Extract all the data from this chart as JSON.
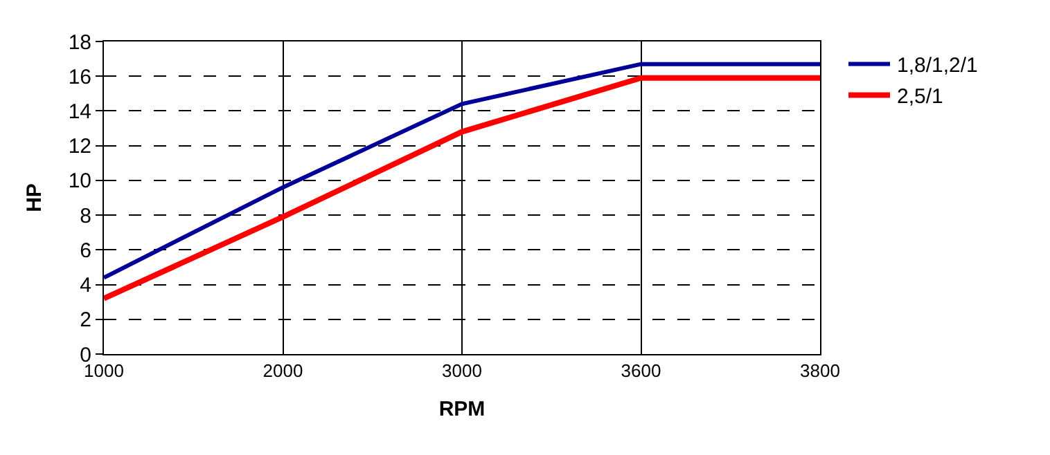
{
  "chart_data": {
    "type": "line",
    "xlabel": "RPM",
    "ylabel": "HP",
    "categories": [
      "1000",
      "2000",
      "3000",
      "3600",
      "3800"
    ],
    "series": [
      {
        "name": "1,8/1,2/1",
        "color": "#000099",
        "values": [
          4.4,
          9.6,
          14.4,
          16.7,
          16.7
        ]
      },
      {
        "name": "2,5/1",
        "color": "#ff0000",
        "values": [
          3.2,
          7.9,
          12.8,
          15.9,
          15.9
        ]
      }
    ],
    "ylim": [
      0,
      18
    ],
    "yticks": [
      0,
      2,
      4,
      6,
      8,
      10,
      12,
      14,
      16,
      18
    ],
    "grid": true,
    "legend": "top right",
    "marker": "none",
    "line_style": "solid"
  }
}
